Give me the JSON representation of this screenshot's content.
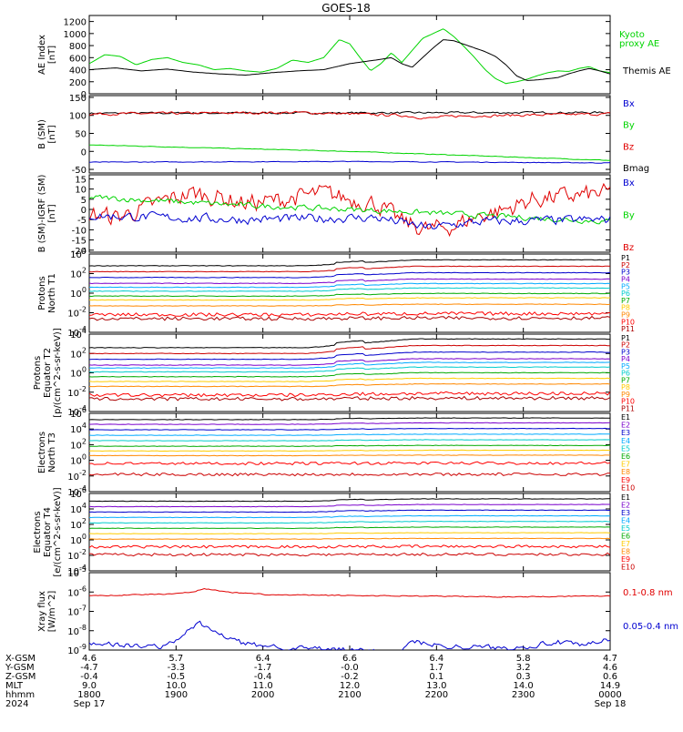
{
  "title": "GOES-18",
  "colors": {
    "black": "#000000",
    "green": "#00d400",
    "red": "#e00000",
    "blue": "#0000d0",
    "P": [
      "#000000",
      "#cc0000",
      "#0000cc",
      "#7a00cc",
      "#00aaff",
      "#00cccc",
      "#00aa00",
      "#ffcc00",
      "#ff8800",
      "#ff0000",
      "#aa0000"
    ],
    "E": [
      "#000000",
      "#7a00cc",
      "#0000cc",
      "#00aaff",
      "#00cccc",
      "#00aa00",
      "#ffcc00",
      "#ff8800",
      "#ff0000",
      "#cc0000",
      "#aa0000"
    ]
  },
  "chart_data": [
    {
      "id": "ae",
      "type": "line",
      "ylabel": "AE Index [nT]",
      "ylabel_lines": [
        "AE Index",
        "[nT]"
      ],
      "ylim": [
        0,
        1300
      ],
      "yticks": [
        "0",
        "200",
        "400",
        "600",
        "800",
        "1000",
        "1200"
      ],
      "ytick_values": [
        0,
        200,
        400,
        600,
        800,
        1000,
        1200
      ],
      "legend": [
        {
          "text": "Kyoto",
          "color": "green"
        },
        {
          "text": "proxy AE",
          "color": "green"
        },
        {
          "text": "Themis AE",
          "color": "black"
        }
      ],
      "series": [
        {
          "name": "Kyoto proxy AE",
          "color": "green",
          "x": [
            0,
            0.03,
            0.06,
            0.09,
            0.12,
            0.15,
            0.18,
            0.21,
            0.24,
            0.27,
            0.3,
            0.33,
            0.36,
            0.39,
            0.42,
            0.45,
            0.48,
            0.5,
            0.52,
            0.54,
            0.56,
            0.58,
            0.6,
            0.62,
            0.64,
            0.66,
            0.68,
            0.7,
            0.72,
            0.74,
            0.76,
            0.78,
            0.8,
            0.82,
            0.84,
            0.86,
            0.88,
            0.9,
            0.92,
            0.94,
            0.96,
            0.98,
            1.0
          ],
          "y": [
            500,
            650,
            620,
            480,
            570,
            600,
            520,
            480,
            400,
            420,
            380,
            360,
            420,
            560,
            520,
            600,
            900,
            830,
            600,
            380,
            500,
            680,
            520,
            720,
            920,
            1000,
            1080,
            950,
            780,
            600,
            400,
            250,
            170,
            200,
            240,
            300,
            350,
            380,
            370,
            420,
            450,
            380,
            350
          ]
        },
        {
          "name": "Themis AE",
          "color": "black",
          "x": [
            0,
            0.05,
            0.1,
            0.15,
            0.2,
            0.25,
            0.3,
            0.35,
            0.4,
            0.45,
            0.5,
            0.55,
            0.58,
            0.6,
            0.62,
            0.64,
            0.66,
            0.68,
            0.7,
            0.72,
            0.74,
            0.76,
            0.78,
            0.8,
            0.82,
            0.84,
            0.86,
            0.88,
            0.9,
            0.92,
            0.94,
            0.96,
            0.98,
            1.0
          ],
          "y": [
            400,
            430,
            380,
            410,
            360,
            330,
            310,
            350,
            380,
            400,
            500,
            560,
            600,
            500,
            440,
            600,
            760,
            900,
            880,
            820,
            760,
            700,
            620,
            480,
            300,
            220,
            230,
            250,
            270,
            330,
            380,
            420,
            380,
            330
          ]
        }
      ]
    },
    {
      "id": "bsm",
      "type": "line",
      "ylabel": "B (SM) [nT]",
      "ylabel_lines": [
        "B (SM)",
        "[nT]"
      ],
      "ylim": [
        -60,
        155
      ],
      "yticks": [
        "-50",
        "0",
        "50",
        "100",
        "150"
      ],
      "ytick_values": [
        -50,
        0,
        50,
        100,
        150
      ],
      "legend": [
        {
          "text": "Bx",
          "color": "blue"
        },
        {
          "text": "By",
          "color": "green"
        },
        {
          "text": "Bz",
          "color": "red"
        },
        {
          "text": "Bmag",
          "color": "black"
        }
      ],
      "series": [
        {
          "name": "Bmag",
          "color": "black",
          "x": [
            0,
            1
          ],
          "y": [
            106,
            108
          ],
          "noise": 3
        },
        {
          "name": "Bz",
          "color": "red",
          "x": [
            0,
            0.4,
            0.6,
            0.65,
            0.7,
            1
          ],
          "y": [
            104,
            108,
            100,
            92,
            98,
            104
          ],
          "noise": 4
        },
        {
          "name": "By",
          "color": "green",
          "x": [
            0,
            0.5,
            1
          ],
          "y": [
            18,
            0,
            -25
          ],
          "noise": 1
        },
        {
          "name": "Bx",
          "color": "blue",
          "x": [
            0,
            0.5,
            1
          ],
          "y": [
            -30,
            -28,
            -32
          ],
          "noise": 1
        }
      ]
    },
    {
      "id": "bigrf",
      "type": "line",
      "ylabel": "B (SM)-IGRF (SM) [nT]",
      "ylabel_lines": [
        "B (SM)-IGRF (SM)",
        "[nT]"
      ],
      "ylim": [
        -21,
        17
      ],
      "yticks": [
        "-20",
        "-15",
        "-10",
        "-5",
        "0",
        "5",
        "10",
        "15"
      ],
      "ytick_values": [
        -20,
        -15,
        -10,
        -5,
        0,
        5,
        10,
        15
      ],
      "legend": [
        {
          "text": "Bx",
          "color": "blue"
        },
        {
          "text": "By",
          "color": "green"
        },
        {
          "text": "Bz",
          "color": "red"
        }
      ],
      "series": [
        {
          "name": "Bz",
          "color": "red",
          "x": [
            0,
            0.05,
            0.1,
            0.15,
            0.2,
            0.25,
            0.3,
            0.35,
            0.4,
            0.45,
            0.5,
            0.55,
            0.6,
            0.65,
            0.7,
            0.75,
            0.8,
            0.85,
            0.9,
            0.95,
            1.0
          ],
          "y": [
            -2,
            -4,
            0,
            5,
            8,
            6,
            3,
            4,
            6,
            8,
            5,
            3,
            -6,
            -10,
            -8,
            -3,
            0,
            5,
            6,
            7,
            8
          ],
          "noise": 5
        },
        {
          "name": "By",
          "color": "green",
          "x": [
            0,
            0.3,
            0.6,
            1
          ],
          "y": [
            6,
            2,
            -1,
            -6
          ],
          "noise": 1.5
        },
        {
          "name": "Bx",
          "color": "blue",
          "x": [
            0,
            0.3,
            0.55,
            0.65,
            0.75,
            1
          ],
          "y": [
            -3,
            -5,
            -4,
            -9,
            -6,
            -5
          ],
          "noise": 2.5
        }
      ]
    },
    {
      "id": "pnt1",
      "type": "line",
      "scale": "log",
      "ylabel": "Protons North T1",
      "ylabel_lines": [
        "Protons",
        "North T1"
      ],
      "ylim": [
        -4,
        4
      ],
      "yticks": [
        "10^-4",
        "10^-2",
        "10^0",
        "10^2",
        "10^4"
      ],
      "ytick_values": [
        -4,
        -2,
        0,
        2,
        4
      ],
      "legend_prefix": "P",
      "legend_colors": "P",
      "legend": [
        "P1",
        "P2",
        "P3",
        "P4",
        "P5",
        "P6",
        "P7",
        "P8",
        "P9",
        "P10",
        "P11"
      ],
      "levels": [
        2.8,
        2.2,
        1.6,
        1.0,
        0.6,
        0.2,
        -0.3,
        -0.7,
        -1.3,
        -2.2,
        -2.6
      ],
      "bump": 0.6
    },
    {
      "id": "pet2",
      "type": "line",
      "scale": "log",
      "ylabel": "Protons Equator T2 [p/(cm^2-s-sr-keV)]",
      "ylabel_lines": [
        "Protons",
        "Equator T2",
        "[p/(cm^2-s-sr-keV)]"
      ],
      "ylim": [
        -4,
        4
      ],
      "yticks": [
        "10^-4",
        "10^-2",
        "10^0",
        "10^2",
        "10^4"
      ],
      "ytick_values": [
        -4,
        -2,
        0,
        2,
        4
      ],
      "legend_prefix": "P",
      "legend_colors": "P",
      "legend": [
        "P1",
        "P2",
        "P3",
        "P4",
        "P5",
        "P6",
        "P7",
        "P8",
        "P9",
        "P10",
        "P11"
      ],
      "levels": [
        2.6,
        2.0,
        1.4,
        0.8,
        0.5,
        0.1,
        -0.4,
        -0.9,
        -1.4,
        -2.3,
        -2.7
      ],
      "bump": 0.9
    },
    {
      "id": "ent3",
      "type": "line",
      "scale": "log",
      "ylabel": "Electrons North T3",
      "ylabel_lines": [
        "Electrons",
        "North T3"
      ],
      "ylim": [
        -4,
        6
      ],
      "yticks": [
        "10^-4",
        "10^-2",
        "10^0",
        "10^2",
        "10^4",
        "10^6"
      ],
      "ytick_values": [
        -4,
        -2,
        0,
        2,
        4,
        6
      ],
      "legend_prefix": "E",
      "legend_colors": "E",
      "legend": [
        "E1",
        "E2",
        "E3",
        "E4",
        "E5",
        "E6",
        "E7",
        "E8",
        "E9",
        "E10"
      ],
      "levels": [
        5.2,
        4.6,
        3.9,
        3.2,
        2.5,
        1.8,
        1.2,
        0.6,
        -0.4,
        -1.8
      ],
      "bump": 0.2
    },
    {
      "id": "eet4",
      "type": "line",
      "scale": "log",
      "ylabel": "Electrons Equator T4 [e/(cm^2-s-sr-keV)]",
      "ylabel_lines": [
        "Electrons",
        "Equator T4",
        "[e/(cm^2-s-sr-keV)]"
      ],
      "ylim": [
        -4,
        6
      ],
      "yticks": [
        "10^-4",
        "10^-2",
        "10^0",
        "10^2",
        "10^4",
        "10^6"
      ],
      "ytick_values": [
        -4,
        -2,
        0,
        2,
        4,
        6
      ],
      "legend_prefix": "E",
      "legend_colors": "E",
      "legend": [
        "E1",
        "E2",
        "E3",
        "E4",
        "E5",
        "E6",
        "E7",
        "E8",
        "E9",
        "E10"
      ],
      "levels": [
        5.0,
        4.3,
        3.6,
        2.9,
        2.2,
        1.5,
        0.8,
        0.1,
        -0.9,
        -1.9
      ],
      "bump": 0.3
    },
    {
      "id": "xray",
      "type": "line",
      "scale": "log",
      "ylabel": "Xray flux [W/m^2]",
      "ylabel_lines": [
        "Xray flux",
        "[W/m^2]"
      ],
      "ylim": [
        -9,
        -5
      ],
      "yticks": [
        "10^-9",
        "10^-8",
        "10^-7",
        "10^-6",
        "10^-5"
      ],
      "ytick_values": [
        -9,
        -8,
        -7,
        -6,
        -5
      ],
      "legend": [
        {
          "text": "0.1-0.8 nm",
          "color": "red"
        },
        {
          "text": "0.05-0.4 nm",
          "color": "blue"
        }
      ],
      "series": [
        {
          "name": "0.1-0.8 nm",
          "color": "red",
          "x": [
            0,
            0.15,
            0.2,
            0.22,
            0.26,
            0.35,
            0.6,
            0.8,
            1.0
          ],
          "y": [
            -6.2,
            -6.1,
            -6.0,
            -5.8,
            -6.0,
            -6.15,
            -6.2,
            -6.25,
            -6.2
          ],
          "noise": 0.03
        },
        {
          "name": "0.05-0.4 nm",
          "color": "blue",
          "x": [
            0,
            0.1,
            0.15,
            0.19,
            0.21,
            0.25,
            0.3,
            0.35,
            0.4,
            0.5,
            0.6,
            0.62,
            0.65,
            0.7,
            0.8,
            0.9,
            0.95,
            1.0
          ],
          "y": [
            -8.6,
            -8.8,
            -8.8,
            -8.0,
            -7.6,
            -8.2,
            -8.7,
            -8.8,
            -8.9,
            -9.0,
            -9.1,
            -8.5,
            -8.7,
            -8.8,
            -8.9,
            -8.6,
            -8.8,
            -8.4
          ],
          "noise": 0.15
        }
      ]
    }
  ],
  "xaxis": {
    "row_labels": [
      "X-GSM",
      "Y-GSM",
      "Z-GSM",
      "MLT",
      "hhmm",
      "2024"
    ],
    "columns": [
      {
        "x": 0,
        "vals": [
          "4.6",
          "-4.7",
          "-0.4",
          "9.0",
          "1800",
          "Sep 17"
        ]
      },
      {
        "x": 0.1667,
        "vals": [
          "5.7",
          "-3.3",
          "-0.5",
          "10.0",
          "1900",
          ""
        ]
      },
      {
        "x": 0.3333,
        "vals": [
          "6.4",
          "-1.7",
          "-0.4",
          "11.0",
          "2000",
          ""
        ]
      },
      {
        "x": 0.5,
        "vals": [
          "6.6",
          "-0.0",
          "-0.2",
          "12.0",
          "2100",
          ""
        ]
      },
      {
        "x": 0.6667,
        "vals": [
          "6.4",
          "1.7",
          "0.1",
          "13.0",
          "2200",
          ""
        ]
      },
      {
        "x": 0.8333,
        "vals": [
          "5.8",
          "3.2",
          "0.3",
          "14.0",
          "2300",
          ""
        ]
      },
      {
        "x": 1,
        "vals": [
          "4.7",
          "4.6",
          "0.6",
          "14.9",
          "0000",
          "Sep 18"
        ]
      }
    ]
  }
}
